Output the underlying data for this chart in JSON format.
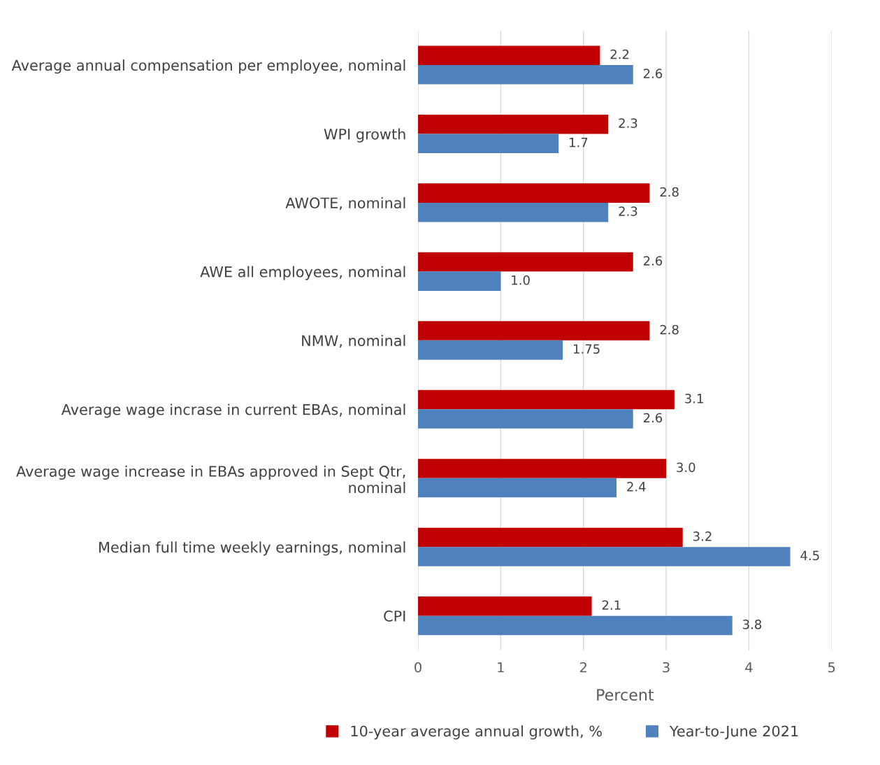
{
  "chart_data": {
    "type": "bar",
    "orientation": "horizontal",
    "xlabel": "Percent",
    "categories": [
      "Average annual compensation per employee, nominal",
      "WPI growth",
      "AWOTE, nominal",
      "AWE all employees, nominal",
      "NMW, nominal",
      "Average wage incrase in current EBAs, nominal",
      "Average wage increase in EBAs approved in Sept Qtr,\nnominal",
      "Median full time weekly earnings, nominal",
      "CPI"
    ],
    "series": [
      {
        "name": "10-year average annual growth, %",
        "color": "#c00000",
        "values": [
          2.2,
          2.3,
          2.8,
          2.6,
          2.8,
          3.1,
          3.0,
          3.2,
          2.1
        ],
        "value_labels": [
          "2.2",
          "2.3",
          "2.8",
          "2.6",
          "2.8",
          "3.1",
          "3.0",
          "3.2",
          "2.1"
        ]
      },
      {
        "name": "Year-to-June 2021",
        "color": "#4f81bd",
        "values": [
          2.6,
          1.7,
          2.3,
          1.0,
          1.75,
          2.6,
          2.4,
          4.5,
          3.8
        ],
        "value_labels": [
          "2.6",
          "1.7",
          "2.3",
          "1.0",
          "1.75",
          "2.6",
          "2.4",
          "4.5",
          "3.8"
        ]
      }
    ],
    "xlim": [
      0,
      5
    ],
    "xticks": [
      0,
      1,
      2,
      3,
      4,
      5
    ],
    "grid": "x",
    "legend": "bottom"
  }
}
